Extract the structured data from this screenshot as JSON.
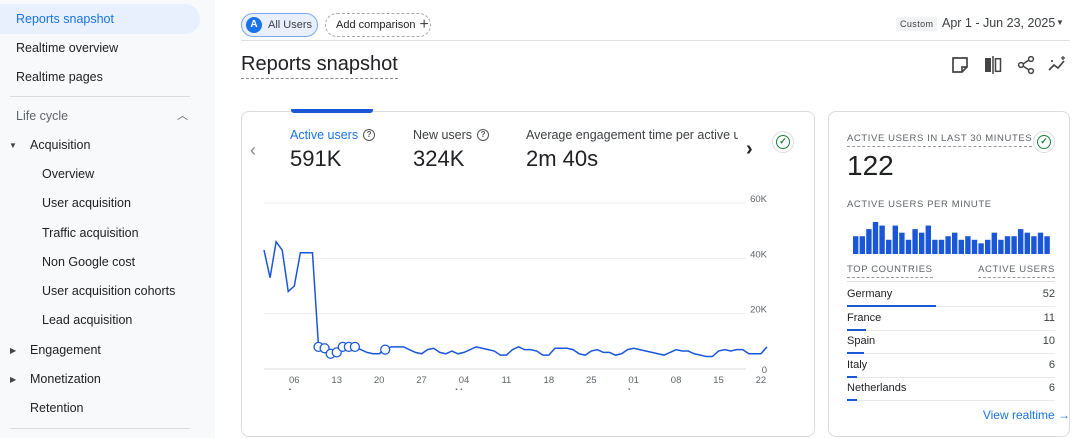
{
  "sidebar": {
    "items": [
      {
        "label": "Reports snapshot",
        "active": true
      },
      {
        "label": "Realtime overview"
      },
      {
        "label": "Realtime pages"
      }
    ],
    "section": "Life cycle",
    "groups": [
      {
        "label": "Acquisition",
        "expanded": true,
        "children": [
          "Overview",
          "User acquisition",
          "Traffic acquisition",
          "Non Google cost",
          "User acquisition cohorts",
          "Lead acquisition"
        ]
      },
      {
        "label": "Engagement",
        "expanded": false
      },
      {
        "label": "Monetization",
        "expanded": false
      },
      {
        "label": "Retention"
      }
    ]
  },
  "header": {
    "segment_avatar": "A",
    "segment": "All Users",
    "add_comparison": "Add comparison",
    "date_chip": "Custom",
    "date_range": "Apr 1 - Jun 23, 2025"
  },
  "page": {
    "title": "Reports snapshot",
    "icons": [
      "note-icon",
      "compare-columns-icon",
      "share-icon",
      "insights-icon"
    ]
  },
  "metrics": [
    {
      "label": "Active users",
      "value": "591K",
      "selected": true
    },
    {
      "label": "New users",
      "value": "324K"
    },
    {
      "label": "Average engagement time per active us",
      "value": "2m 40s"
    }
  ],
  "colors": {
    "accent": "#1a73e8",
    "line": "#1a57d8",
    "success": "#188038"
  },
  "chart_data": [
    {
      "type": "line",
      "ylim": [
        0,
        60000
      ],
      "yticks": [
        "0",
        "20K",
        "40K",
        "60K"
      ],
      "xticks": [
        {
          "date": "2025-04-06",
          "label": "06",
          "sub": "Apr"
        },
        {
          "date": "2025-04-13",
          "label": "13"
        },
        {
          "date": "2025-04-20",
          "label": "20"
        },
        {
          "date": "2025-04-27",
          "label": "27"
        },
        {
          "date": "2025-05-04",
          "label": "04",
          "sub": "May"
        },
        {
          "date": "2025-05-11",
          "label": "11"
        },
        {
          "date": "2025-05-18",
          "label": "18"
        },
        {
          "date": "2025-05-25",
          "label": "25"
        },
        {
          "date": "2025-06-01",
          "label": "01",
          "sub": "Jun"
        },
        {
          "date": "2025-06-08",
          "label": "08"
        },
        {
          "date": "2025-06-15",
          "label": "15"
        },
        {
          "date": "2025-06-22",
          "label": "22"
        }
      ],
      "x_range": [
        "2025-04-01",
        "2025-06-23"
      ],
      "values": [
        43000,
        33000,
        46000,
        43000,
        28000,
        30000,
        42000,
        42000,
        42000,
        8000,
        7500,
        5500,
        6000,
        8000,
        8000,
        8000,
        7000,
        6000,
        5500,
        5500,
        7000,
        8000,
        8000,
        8000,
        7000,
        6000,
        5500,
        7000,
        7500,
        6000,
        5500,
        6500,
        5500,
        6000,
        7000,
        8000,
        7500,
        7000,
        6500,
        5000,
        5000,
        7000,
        8000,
        7000,
        7000,
        6500,
        5000,
        5000,
        7500,
        7500,
        7500,
        7000,
        5500,
        5000,
        6500,
        7000,
        6000,
        6000,
        5000,
        5500,
        7000,
        7500,
        7000,
        6500,
        6000,
        5500,
        5000,
        6000,
        7000,
        6500,
        6500,
        5500,
        5000,
        4500,
        4500,
        6500,
        7000,
        6500,
        7000,
        7000,
        5500,
        5500,
        5500,
        8000
      ],
      "anomalies": [
        "2025-04-10",
        "2025-04-11",
        "2025-04-12",
        "2025-04-13",
        "2025-04-14",
        "2025-04-15",
        "2025-04-16",
        "2025-04-21"
      ],
      "grid": true
    },
    {
      "type": "bar",
      "title": "ACTIVE USERS PER MINUTE",
      "values": [
        5,
        5,
        7,
        9,
        8,
        4,
        8,
        6,
        4,
        7,
        6,
        8,
        4,
        4,
        5,
        6,
        4,
        5,
        4,
        3,
        4,
        6,
        4,
        5,
        5,
        7,
        6,
        5,
        6,
        5
      ]
    }
  ],
  "realtime": {
    "title": "ACTIVE USERS IN LAST 30 MINUTES",
    "value": "122",
    "per_minute": "ACTIVE USERS PER MINUTE",
    "col1": "TOP COUNTRIES",
    "col2": "ACTIVE USERS",
    "countries": [
      {
        "name": "Germany",
        "value": 52
      },
      {
        "name": "France",
        "value": 11
      },
      {
        "name": "Spain",
        "value": 10
      },
      {
        "name": "Italy",
        "value": 6
      },
      {
        "name": "Netherlands",
        "value": 6
      }
    ],
    "link": "View realtime"
  }
}
